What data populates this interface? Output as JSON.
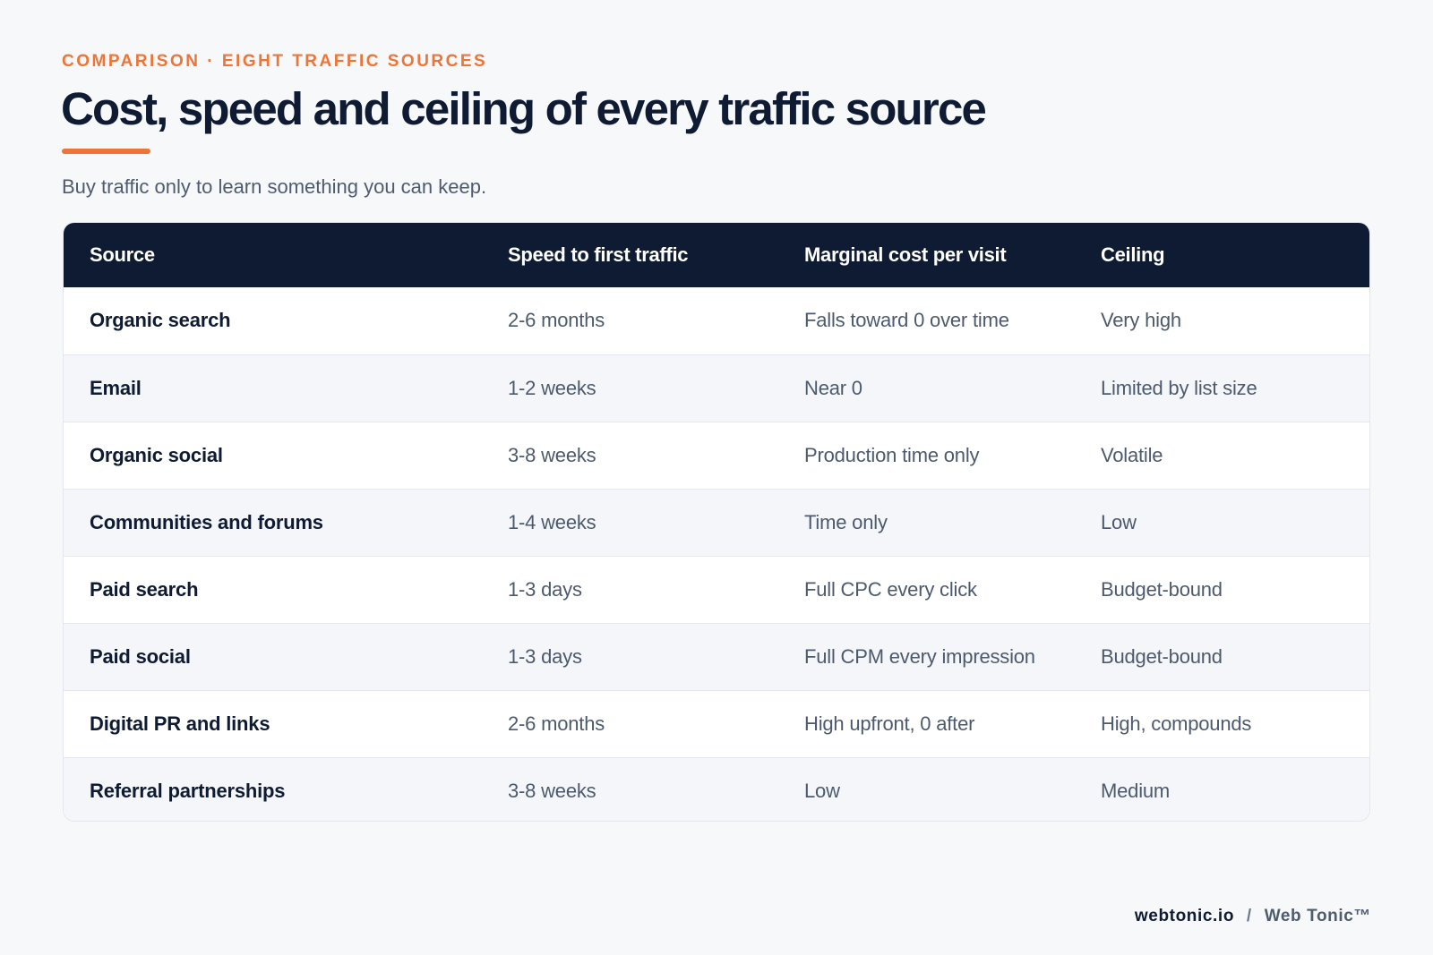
{
  "header": {
    "eyebrow": "COMPARISON · EIGHT TRAFFIC SOURCES",
    "title": "Cost, speed and ceiling of every traffic source",
    "subtitle": "Buy traffic only to learn something you can keep."
  },
  "table": {
    "columns": [
      "Source",
      "Speed to first traffic",
      "Marginal cost per visit",
      "Ceiling"
    ],
    "rows": [
      {
        "source": "Organic search",
        "speed": "2-6 months",
        "cost": "Falls toward 0 over time",
        "ceiling": "Very high"
      },
      {
        "source": "Email",
        "speed": "1-2 weeks",
        "cost": "Near 0",
        "ceiling": "Limited by list size"
      },
      {
        "source": "Organic social",
        "speed": "3-8 weeks",
        "cost": "Production time only",
        "ceiling": "Volatile"
      },
      {
        "source": "Communities and forums",
        "speed": "1-4 weeks",
        "cost": "Time only",
        "ceiling": "Low"
      },
      {
        "source": "Paid search",
        "speed": "1-3 days",
        "cost": "Full CPC every click",
        "ceiling": "Budget-bound"
      },
      {
        "source": "Paid social",
        "speed": "1-3 days",
        "cost": "Full CPM every impression",
        "ceiling": "Budget-bound"
      },
      {
        "source": "Digital PR and links",
        "speed": "2-6 months",
        "cost": "High upfront, 0 after",
        "ceiling": "High, compounds"
      },
      {
        "source": "Referral partnerships",
        "speed": "3-8 weeks",
        "cost": "Low",
        "ceiling": "Medium"
      }
    ]
  },
  "footer": {
    "domain": "webtonic.io",
    "separator": "/",
    "brand": "Web Tonic™"
  },
  "colors": {
    "accent": "#ef7537",
    "navy": "#0f1b33",
    "background": "#f6f8fa",
    "row_alt": "#f4f6f9"
  }
}
